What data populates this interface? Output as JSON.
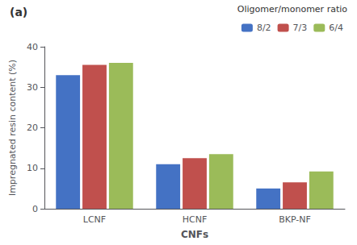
{
  "chart_data": {
    "type": "bar",
    "categories": [
      "LCNF",
      "HCNF",
      "BKP-NF"
    ],
    "series": [
      {
        "name": "8/2",
        "color": "#4472C4",
        "values": [
          33.0,
          11.0,
          5.0
        ]
      },
      {
        "name": "7/3",
        "color": "#C0504D",
        "values": [
          35.5,
          12.5,
          6.5
        ]
      },
      {
        "name": "6/4",
        "color": "#9BBB59",
        "values": [
          36.0,
          13.5,
          9.2
        ]
      }
    ],
    "xlabel": "CNFs",
    "ylabel": "Impregnated resin content (%)",
    "legend_title": "Oligomer/monomer ratio",
    "annotations": [
      {
        "text": "(a)"
      }
    ],
    "ylim": [
      0,
      40
    ],
    "yticks": [
      0,
      10,
      20,
      30,
      40
    ],
    "grid": false,
    "legend": "upper right"
  }
}
